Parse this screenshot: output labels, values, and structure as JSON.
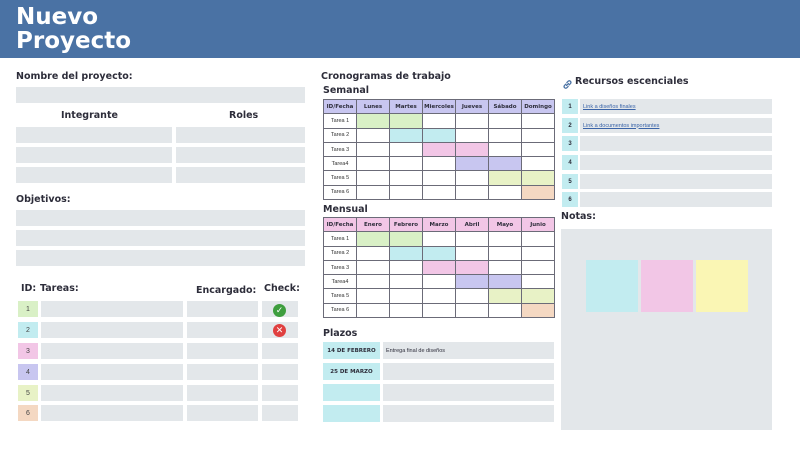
{
  "header": {
    "title_line1": "Nuevo",
    "title_line2": "Proyecto"
  },
  "left": {
    "project_name_label": "Nombre del proyecto:",
    "integrante_label": "Integrante",
    "roles_label": "Roles",
    "objetivos_label": "Objetivos:",
    "id_label": "ID:",
    "tareas_label": "Tareas:",
    "encargado_label": "Encargado:",
    "check_label": "Check:",
    "task_ids": [
      "1",
      "2",
      "3",
      "4",
      "5",
      "6"
    ],
    "task_id_colors": [
      "#d9f0c6",
      "#c2ecf0",
      "#f2c6e6",
      "#c8c6f0",
      "#e8f2c6",
      "#f4d8c2"
    ]
  },
  "schedule": {
    "title": "Cronogramas de trabajo",
    "weekly_label": "Semanal",
    "monthly_label": "Mensual",
    "corner_label": "ID/Fecha",
    "days": [
      "Lunes",
      "Martes",
      "Miercoles",
      "Jueves",
      "Sábado",
      "Domingo"
    ],
    "months": [
      "Enero",
      "Febrero",
      "Marzo",
      "Abril",
      "Mayo",
      "Junio"
    ],
    "tasks": [
      "Tarea 1",
      "Tarea 2",
      "Tarea 3",
      "Tarea4",
      "Tarea 5",
      "Tarea 6"
    ],
    "weekly_header_color": "#c8c6f0",
    "monthly_header_color": "#f2c6e6",
    "weekly_fills": [
      [
        1,
        1,
        0,
        0,
        0,
        0
      ],
      [
        0,
        1,
        1,
        0,
        0,
        0
      ],
      [
        0,
        0,
        1,
        1,
        0,
        0
      ],
      [
        0,
        0,
        0,
        1,
        1,
        0
      ],
      [
        0,
        0,
        0,
        0,
        1,
        1
      ],
      [
        0,
        0,
        0,
        0,
        0,
        1
      ]
    ],
    "monthly_fills": [
      [
        1,
        1,
        0,
        0,
        0,
        0
      ],
      [
        0,
        1,
        1,
        0,
        0,
        0
      ],
      [
        0,
        0,
        1,
        1,
        0,
        0
      ],
      [
        0,
        0,
        0,
        1,
        1,
        0
      ],
      [
        0,
        0,
        0,
        0,
        1,
        1
      ],
      [
        0,
        0,
        0,
        0,
        0,
        1
      ]
    ]
  },
  "plazos": {
    "label": "Plazos",
    "rows": [
      {
        "date": "14 DE FEBRERO",
        "text": "Entrega final de diseños"
      },
      {
        "date": "25 DE MARZO",
        "text": ""
      },
      {
        "date": "",
        "text": ""
      },
      {
        "date": "",
        "text": ""
      }
    ]
  },
  "recursos": {
    "label": "Recursos escenciales",
    "ids": [
      "1",
      "2",
      "3",
      "4",
      "5",
      "6"
    ],
    "links": [
      "Link a diseños finales",
      "Link a documentos importantes",
      "",
      "",
      "",
      ""
    ]
  },
  "notas": {
    "label": "Notas:",
    "sticky_colors": [
      "#c2ecf0",
      "#f2c6e6",
      "#faf6b4"
    ]
  },
  "colors": {
    "header_bg": "#4a72a4",
    "field_bg": "#e3e7ea",
    "check_ok": "#3e9e3e",
    "check_fail": "#e04040"
  }
}
